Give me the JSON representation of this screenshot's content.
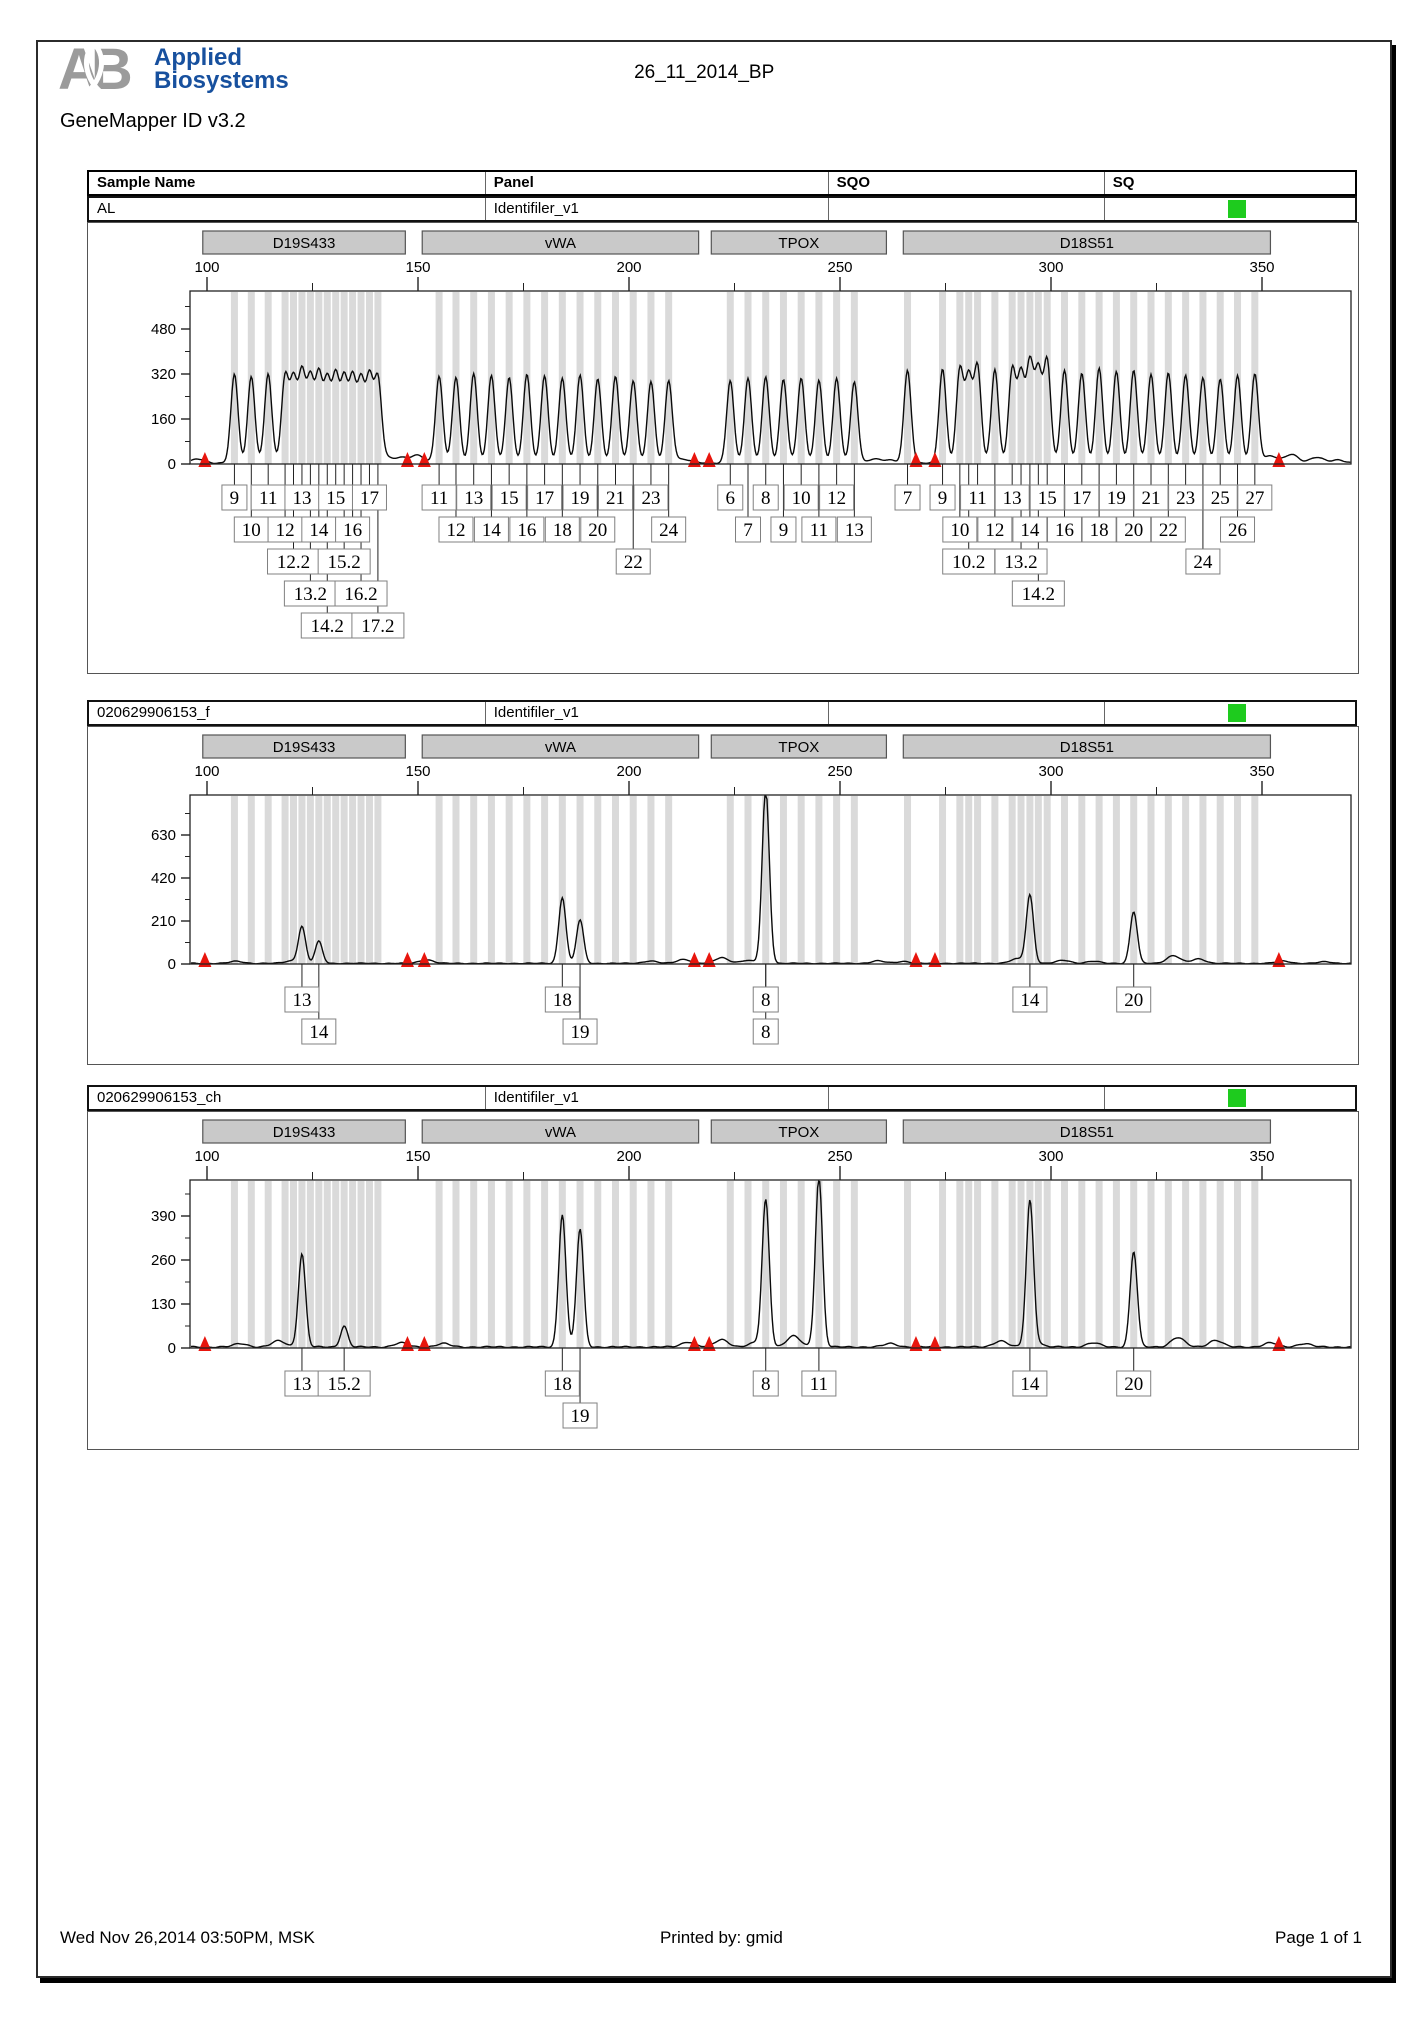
{
  "page": {
    "logo_monogram": "AB",
    "logo_line1": "Applied",
    "logo_line2": "Biosystems",
    "app_version": "GeneMapper ID v3.2",
    "title": "26_11_2014_BP",
    "footer": {
      "left": "Wed Nov 26,2014 03:50PM, MSK",
      "center": "Printed by: gmid",
      "right": "Page 1 of 1"
    }
  },
  "table": {
    "headers": [
      "Sample Name",
      "Panel",
      "SQO",
      "SQ"
    ]
  },
  "colors": {
    "status_green": "#1ecb1e",
    "offscale_red": "#e8150d",
    "bin_gray": "#dadada",
    "marker_bar_gray": "#c9c9c9",
    "logo_blue": "#17509e",
    "logo_gray": "#9b9b9b",
    "trace_black": "#0a0a0a"
  },
  "loci": [
    {
      "name": "D19S433",
      "bar_from": 99,
      "bar_to": 147,
      "bins": [
        106.5,
        110.5,
        114.5,
        118.5,
        120.5,
        122.5,
        124.5,
        126.5,
        128.5,
        130.5,
        132.5,
        134.5,
        136.5,
        138.5,
        140.5
      ]
    },
    {
      "name": "vWA",
      "bar_from": 151,
      "bar_to": 216.5,
      "bins": [
        155,
        159,
        163.2,
        167.4,
        171.6,
        175.8,
        180,
        184.2,
        188.4,
        192.6,
        196.8,
        201,
        205.2,
        209.4
      ]
    },
    {
      "name": "TPOX",
      "bar_from": 219.5,
      "bar_to": 261,
      "bins": [
        224,
        228.2,
        232.4,
        236.6,
        240.8,
        245,
        249.2,
        253.4
      ]
    },
    {
      "name": "D18S51",
      "bar_from": 265,
      "bar_to": 352,
      "bins": [
        266,
        274.3,
        278.4,
        280.5,
        282.6,
        286.7,
        290.8,
        292.9,
        295,
        297,
        299.1,
        303.2,
        307.3,
        311.4,
        315.5,
        319.6,
        323.7,
        327.8,
        331.9,
        336,
        340.1,
        344.2,
        348.3
      ]
    }
  ],
  "x_axis": {
    "ticks": [
      100,
      150,
      200,
      250,
      300,
      350
    ],
    "minor_ticks": [
      125,
      175,
      225,
      275,
      325
    ]
  },
  "chart_data": [
    {
      "type": "line",
      "sample_name": "AL",
      "panel": "Identifiler_v1",
      "sqo": "",
      "sq": "green",
      "y_axis": {
        "ticks": [
          0,
          160,
          320,
          480
        ],
        "max": 615
      },
      "peaks": [
        {
          "locus": "D19S433",
          "allele": "9",
          "bp": 106.5,
          "rfu": 315,
          "row": 1
        },
        {
          "locus": "D19S433",
          "allele": "10",
          "bp": 110.5,
          "rfu": 308,
          "row": 2
        },
        {
          "locus": "D19S433",
          "allele": "11",
          "bp": 114.5,
          "rfu": 318,
          "row": 1
        },
        {
          "locus": "D19S433",
          "allele": "12",
          "bp": 118.5,
          "rfu": 305,
          "row": 2
        },
        {
          "locus": "D19S433",
          "allele": "12.2",
          "bp": 120.5,
          "rfu": 285,
          "row": 3
        },
        {
          "locus": "D19S433",
          "allele": "13",
          "bp": 122.5,
          "rfu": 310,
          "row": 1
        },
        {
          "locus": "D19S433",
          "allele": "13.2",
          "bp": 124.5,
          "rfu": 290,
          "row": 4
        },
        {
          "locus": "D19S433",
          "allele": "14",
          "bp": 126.5,
          "rfu": 300,
          "row": 2
        },
        {
          "locus": "D19S433",
          "allele": "14.2",
          "bp": 128.5,
          "rfu": 283,
          "row": 5
        },
        {
          "locus": "D19S433",
          "allele": "15",
          "bp": 130.5,
          "rfu": 298,
          "row": 1
        },
        {
          "locus": "D19S433",
          "allele": "15.2",
          "bp": 132.5,
          "rfu": 288,
          "row": 3
        },
        {
          "locus": "D19S433",
          "allele": "16",
          "bp": 134.5,
          "rfu": 292,
          "row": 2
        },
        {
          "locus": "D19S433",
          "allele": "16.2",
          "bp": 136.5,
          "rfu": 280,
          "row": 4
        },
        {
          "locus": "D19S433",
          "allele": "17",
          "bp": 138.5,
          "rfu": 295,
          "row": 1
        },
        {
          "locus": "D19S433",
          "allele": "17.2",
          "bp": 140.5,
          "rfu": 285,
          "row": 5
        },
        {
          "locus": "vWA",
          "allele": "11",
          "bp": 155,
          "rfu": 310,
          "row": 1
        },
        {
          "locus": "vWA",
          "allele": "12",
          "bp": 159,
          "rfu": 304,
          "row": 2
        },
        {
          "locus": "vWA",
          "allele": "13",
          "bp": 163.2,
          "rfu": 318,
          "row": 1
        },
        {
          "locus": "vWA",
          "allele": "14",
          "bp": 167.4,
          "rfu": 312,
          "row": 2
        },
        {
          "locus": "vWA",
          "allele": "15",
          "bp": 171.6,
          "rfu": 306,
          "row": 1
        },
        {
          "locus": "vWA",
          "allele": "16",
          "bp": 175.8,
          "rfu": 315,
          "row": 2
        },
        {
          "locus": "vWA",
          "allele": "17",
          "bp": 180,
          "rfu": 310,
          "row": 1
        },
        {
          "locus": "vWA",
          "allele": "18",
          "bp": 184.2,
          "rfu": 304,
          "row": 2
        },
        {
          "locus": "vWA",
          "allele": "19",
          "bp": 188.4,
          "rfu": 312,
          "row": 1
        },
        {
          "locus": "vWA",
          "allele": "20",
          "bp": 192.6,
          "rfu": 299,
          "row": 2
        },
        {
          "locus": "vWA",
          "allele": "21",
          "bp": 196.8,
          "rfu": 308,
          "row": 1
        },
        {
          "locus": "vWA",
          "allele": "22",
          "bp": 201,
          "rfu": 294,
          "row": 3
        },
        {
          "locus": "vWA",
          "allele": "23",
          "bp": 205.2,
          "rfu": 290,
          "row": 1
        },
        {
          "locus": "vWA",
          "allele": "24",
          "bp": 209.4,
          "rfu": 284,
          "row": 2
        },
        {
          "locus": "TPOX",
          "allele": "6",
          "bp": 224,
          "rfu": 296,
          "row": 1
        },
        {
          "locus": "TPOX",
          "allele": "7",
          "bp": 228.2,
          "rfu": 301,
          "row": 2
        },
        {
          "locus": "TPOX",
          "allele": "8",
          "bp": 232.4,
          "rfu": 306,
          "row": 1
        },
        {
          "locus": "TPOX",
          "allele": "9",
          "bp": 236.6,
          "rfu": 298,
          "row": 2
        },
        {
          "locus": "TPOX",
          "allele": "10",
          "bp": 240.8,
          "rfu": 303,
          "row": 1
        },
        {
          "locus": "TPOX",
          "allele": "11",
          "bp": 245,
          "rfu": 295,
          "row": 2
        },
        {
          "locus": "TPOX",
          "allele": "12",
          "bp": 249.2,
          "rfu": 300,
          "row": 1
        },
        {
          "locus": "TPOX",
          "allele": "13",
          "bp": 253.4,
          "rfu": 290,
          "row": 2
        },
        {
          "locus": "D18S51",
          "allele": "7",
          "bp": 266,
          "rfu": 330,
          "row": 1
        },
        {
          "locus": "D18S51",
          "allele": "9",
          "bp": 274.3,
          "rfu": 336,
          "row": 1
        },
        {
          "locus": "D18S51",
          "allele": "10",
          "bp": 278.4,
          "rfu": 330,
          "row": 2
        },
        {
          "locus": "D18S51",
          "allele": "10.2",
          "bp": 280.5,
          "rfu": 300,
          "row": 3
        },
        {
          "locus": "D18S51",
          "allele": "11",
          "bp": 282.6,
          "rfu": 341,
          "row": 1
        },
        {
          "locus": "D18S51",
          "allele": "12",
          "bp": 286.7,
          "rfu": 335,
          "row": 2
        },
        {
          "locus": "D18S51",
          "allele": "13",
          "bp": 290.8,
          "rfu": 330,
          "row": 1
        },
        {
          "locus": "D18S51",
          "allele": "13.2",
          "bp": 292.9,
          "rfu": 310,
          "row": 3
        },
        {
          "locus": "D18S51",
          "allele": "14",
          "bp": 295,
          "rfu": 346,
          "row": 2
        },
        {
          "locus": "D18S51",
          "allele": "14.2",
          "bp": 297,
          "rfu": 320,
          "row": 4
        },
        {
          "locus": "D18S51",
          "allele": "15",
          "bp": 299.1,
          "rfu": 361,
          "row": 1
        },
        {
          "locus": "D18S51",
          "allele": "16",
          "bp": 303.2,
          "rfu": 331,
          "row": 2
        },
        {
          "locus": "D18S51",
          "allele": "17",
          "bp": 307.3,
          "rfu": 321,
          "row": 1
        },
        {
          "locus": "D18S51",
          "allele": "18",
          "bp": 311.4,
          "rfu": 336,
          "row": 2
        },
        {
          "locus": "D18S51",
          "allele": "19",
          "bp": 315.5,
          "rfu": 326,
          "row": 1
        },
        {
          "locus": "D18S51",
          "allele": "20",
          "bp": 319.6,
          "rfu": 331,
          "row": 2
        },
        {
          "locus": "D18S51",
          "allele": "21",
          "bp": 323.7,
          "rfu": 316,
          "row": 1
        },
        {
          "locus": "D18S51",
          "allele": "22",
          "bp": 327.8,
          "rfu": 321,
          "row": 2
        },
        {
          "locus": "D18S51",
          "allele": "23",
          "bp": 331.9,
          "rfu": 311,
          "row": 1
        },
        {
          "locus": "D18S51",
          "allele": "24",
          "bp": 336,
          "rfu": 305,
          "row": 3
        },
        {
          "locus": "D18S51",
          "allele": "25",
          "bp": 340.1,
          "rfu": 300,
          "row": 1
        },
        {
          "locus": "D18S51",
          "allele": "26",
          "bp": 344.2,
          "rfu": 311,
          "row": 2
        },
        {
          "locus": "D18S51",
          "allele": "27",
          "bp": 348.3,
          "rfu": 316,
          "row": 1
        }
      ],
      "noise": [
        {
          "bp": 98,
          "rfu": 15
        },
        {
          "bp": 142,
          "rfu": 22
        },
        {
          "bp": 146,
          "rfu": 18
        },
        {
          "bp": 150,
          "rfu": 28
        },
        {
          "bp": 211,
          "rfu": 12
        },
        {
          "bp": 214,
          "rfu": 10
        },
        {
          "bp": 258,
          "rfu": 14
        },
        {
          "bp": 262,
          "rfu": 10
        },
        {
          "bp": 352,
          "rfu": 25
        },
        {
          "bp": 357,
          "rfu": 32
        },
        {
          "bp": 363,
          "rfu": 20
        },
        {
          "bp": 368,
          "rfu": 12
        }
      ],
      "offscale_bp": [
        99.5,
        147.5,
        151.5,
        215.5,
        219,
        268,
        272.5,
        354
      ]
    },
    {
      "type": "line",
      "sample_name": "020629906153_f",
      "panel": "Identifiler_v1",
      "sqo": "",
      "sq": "green",
      "y_axis": {
        "ticks": [
          0,
          210,
          420,
          630
        ],
        "max": 825
      },
      "peaks": [
        {
          "locus": "D19S433",
          "allele": "13",
          "bp": 122.5,
          "rfu": 178,
          "row": 1
        },
        {
          "locus": "D19S433",
          "allele": "14",
          "bp": 126.5,
          "rfu": 108,
          "row": 2
        },
        {
          "locus": "vWA",
          "allele": "18",
          "bp": 184.2,
          "rfu": 322,
          "row": 1
        },
        {
          "locus": "vWA",
          "allele": "19",
          "bp": 188.4,
          "rfu": 212,
          "row": 2
        },
        {
          "locus": "TPOX",
          "allele": "8",
          "bp": 232.4,
          "rfu": 852,
          "row": 1
        },
        {
          "locus": "TPOX",
          "allele": "8",
          "bp": 232.4,
          "rfu": null,
          "row": 2
        },
        {
          "locus": "D18S51",
          "allele": "14",
          "bp": 295,
          "rfu": 332,
          "row": 1
        },
        {
          "locus": "D18S51",
          "allele": "20",
          "bp": 319.6,
          "rfu": 252,
          "row": 1
        }
      ],
      "noise": [
        {
          "bp": 107,
          "rfu": 10
        },
        {
          "bp": 120,
          "rfu": 12
        },
        {
          "bp": 152,
          "rfu": 18
        },
        {
          "bp": 205,
          "rfu": 12
        },
        {
          "bp": 213,
          "rfu": 20
        },
        {
          "bp": 222,
          "rfu": 28
        },
        {
          "bp": 228,
          "rfu": 14
        },
        {
          "bp": 259,
          "rfu": 12
        },
        {
          "bp": 265,
          "rfu": 10
        },
        {
          "bp": 292,
          "rfu": 22
        },
        {
          "bp": 303,
          "rfu": 15
        },
        {
          "bp": 310,
          "rfu": 10
        },
        {
          "bp": 329,
          "rfu": 38
        },
        {
          "bp": 335,
          "rfu": 22
        },
        {
          "bp": 355,
          "rfu": 12
        },
        {
          "bp": 365,
          "rfu": 8
        }
      ],
      "offscale_bp": [
        99.5,
        147.5,
        151.5,
        215.5,
        219,
        268,
        272.5,
        354
      ]
    },
    {
      "type": "line",
      "sample_name": "020629906153_ch",
      "panel": "Identifiler_v1",
      "sqo": "",
      "sq": "green",
      "y_axis": {
        "ticks": [
          0,
          130,
          260,
          390
        ],
        "max": 496
      },
      "peaks": [
        {
          "locus": "D19S433",
          "allele": "13",
          "bp": 122.5,
          "rfu": 275,
          "row": 1
        },
        {
          "locus": "D19S433",
          "allele": "15.2",
          "bp": 132.5,
          "rfu": 62,
          "row": 1
        },
        {
          "locus": "vWA",
          "allele": "18",
          "bp": 184.2,
          "rfu": 392,
          "row": 1
        },
        {
          "locus": "vWA",
          "allele": "19",
          "bp": 188.4,
          "rfu": 348,
          "row": 2
        },
        {
          "locus": "TPOX",
          "allele": "8",
          "bp": 232.4,
          "rfu": 432,
          "row": 1
        },
        {
          "locus": "TPOX",
          "allele": "11",
          "bp": 245,
          "rfu": 502,
          "row": 1
        },
        {
          "locus": "D18S51",
          "allele": "14",
          "bp": 295,
          "rfu": 422,
          "row": 1
        },
        {
          "locus": "D18S51",
          "allele": "20",
          "bp": 319.6,
          "rfu": 282,
          "row": 1
        }
      ],
      "noise": [
        {
          "bp": 108,
          "rfu": 10
        },
        {
          "bp": 117,
          "rfu": 18
        },
        {
          "bp": 146,
          "rfu": 12
        },
        {
          "bp": 156,
          "rfu": 10
        },
        {
          "bp": 214,
          "rfu": 15
        },
        {
          "bp": 222,
          "rfu": 22
        },
        {
          "bp": 230,
          "rfu": 12
        },
        {
          "bp": 239,
          "rfu": 32
        },
        {
          "bp": 262,
          "rfu": 10
        },
        {
          "bp": 288,
          "rfu": 18
        },
        {
          "bp": 296,
          "rfu": 15
        },
        {
          "bp": 310,
          "rfu": 12
        },
        {
          "bp": 330,
          "rfu": 28
        },
        {
          "bp": 339,
          "rfu": 20
        },
        {
          "bp": 352,
          "rfu": 12
        },
        {
          "bp": 360,
          "rfu": 10
        }
      ],
      "offscale_bp": [
        99.5,
        147.5,
        151.5,
        215.5,
        219,
        268,
        272.5,
        354
      ]
    }
  ]
}
